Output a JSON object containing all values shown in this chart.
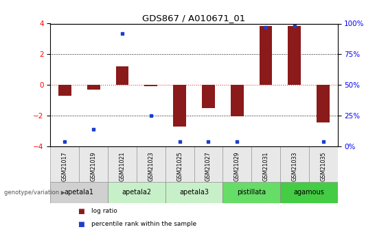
{
  "title": "GDS867 / A010671_01",
  "samples": [
    "GSM21017",
    "GSM21019",
    "GSM21021",
    "GSM21023",
    "GSM21025",
    "GSM21027",
    "GSM21029",
    "GSM21031",
    "GSM21033",
    "GSM21035"
  ],
  "log_ratios": [
    -0.7,
    -0.3,
    1.2,
    -0.1,
    -2.7,
    -1.5,
    -2.05,
    3.85,
    3.85,
    -2.45
  ],
  "percentile_ranks": [
    4,
    14,
    92,
    25,
    4,
    4,
    4,
    97,
    98,
    4
  ],
  "ylim": [
    -4,
    4
  ],
  "y2lim": [
    0,
    100
  ],
  "yticks": [
    -4,
    -2,
    0,
    2,
    4
  ],
  "y2ticks": [
    0,
    25,
    50,
    75,
    100
  ],
  "y2ticklabels": [
    "0%",
    "25%",
    "50%",
    "75%",
    "100%"
  ],
  "dotted_lines_black": [
    -2,
    2
  ],
  "dotted_line_red": 0,
  "bar_color": "#8B1A1A",
  "point_color": "#1C3FCC",
  "red_line_color": "#FF3333",
  "group_defs": [
    {
      "name": "apetala1",
      "indices": [
        0,
        1
      ],
      "color": "#d0d0d0"
    },
    {
      "name": "apetala2",
      "indices": [
        2,
        3
      ],
      "color": "#c8f0c8"
    },
    {
      "name": "apetala3",
      "indices": [
        4,
        5
      ],
      "color": "#c8f0c8"
    },
    {
      "name": "pistillata",
      "indices": [
        6,
        7
      ],
      "color": "#66dd66"
    },
    {
      "name": "agamous",
      "indices": [
        8,
        9
      ],
      "color": "#44cc44"
    }
  ],
  "legend_items": [
    {
      "label": "log ratio",
      "color": "#8B1A1A"
    },
    {
      "label": "percentile rank within the sample",
      "color": "#1C3FCC"
    }
  ],
  "genotype_label": "genotype/variation"
}
